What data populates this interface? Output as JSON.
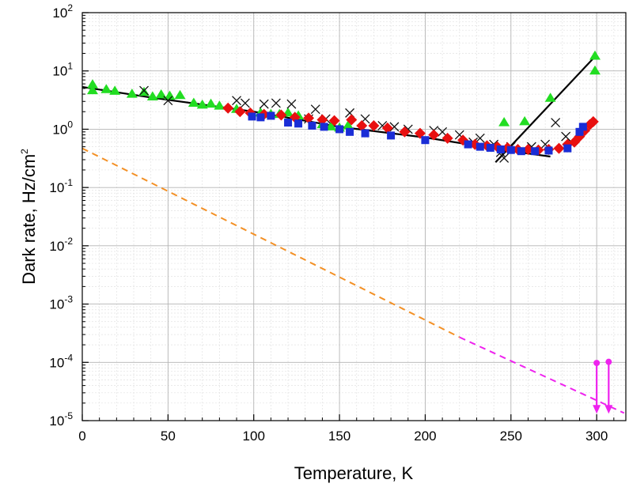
{
  "chart_data": {
    "type": "scatter",
    "title": "",
    "xlabel": "Temperature, K",
    "ylabel_main": "Dark rate,  Hz/cm",
    "ylabel_sup": "2",
    "xlim": [
      0,
      317
    ],
    "ylim": [
      1e-05,
      100
    ],
    "y_scale": "log",
    "grid": true,
    "legend": "none",
    "x_ticks": [
      {
        "value": 0,
        "label": "0"
      },
      {
        "value": 50,
        "label": "50"
      },
      {
        "value": 100,
        "label": "100"
      },
      {
        "value": 150,
        "label": "150"
      },
      {
        "value": 200,
        "label": "200"
      },
      {
        "value": 250,
        "label": "250"
      },
      {
        "value": 300,
        "label": "300"
      }
    ],
    "y_ticks": [
      {
        "value": 1e-05,
        "base": "10",
        "exp": "-5"
      },
      {
        "value": 0.0001,
        "base": "10",
        "exp": "-4"
      },
      {
        "value": 0.001,
        "base": "10",
        "exp": "-3"
      },
      {
        "value": 0.01,
        "base": "10",
        "exp": "-2"
      },
      {
        "value": 0.1,
        "base": "10",
        "exp": "-1"
      },
      {
        "value": 1,
        "base": "10",
        "exp": "0"
      },
      {
        "value": 10,
        "base": "10",
        "exp": "1"
      },
      {
        "value": 100,
        "base": "10",
        "exp": "2"
      }
    ],
    "series": [
      {
        "marker": "triangle",
        "color": "#22dd22",
        "points": [
          [
            6,
            5.8
          ],
          [
            6,
            4.6
          ],
          [
            14,
            4.8
          ],
          [
            19,
            4.5
          ],
          [
            29,
            4.0
          ],
          [
            36,
            4.3
          ],
          [
            41,
            3.6
          ],
          [
            46,
            3.9
          ],
          [
            51,
            3.7
          ],
          [
            57,
            3.8
          ],
          [
            65,
            2.8
          ],
          [
            70,
            2.6
          ],
          [
            75,
            2.7
          ],
          [
            80,
            2.5
          ],
          [
            90,
            2.2
          ],
          [
            104,
            1.9
          ],
          [
            110,
            1.8
          ],
          [
            115,
            1.8
          ],
          [
            120,
            1.9
          ],
          [
            126,
            1.7
          ],
          [
            140,
            1.2
          ],
          [
            145,
            1.1
          ],
          [
            150,
            1.05
          ],
          [
            155,
            1.15
          ],
          [
            246,
            1.3
          ],
          [
            258,
            1.35
          ],
          [
            273,
            3.4
          ],
          [
            299,
            18
          ],
          [
            299,
            10
          ]
        ]
      },
      {
        "marker": "x",
        "color": "#111111",
        "points": [
          [
            36,
            4.6
          ],
          [
            50,
            3.1
          ],
          [
            90,
            3.1
          ],
          [
            95,
            2.8
          ],
          [
            106,
            2.7
          ],
          [
            113,
            2.8
          ],
          [
            122,
            2.7
          ],
          [
            132,
            1.5
          ],
          [
            136,
            2.2
          ],
          [
            142,
            1.5
          ],
          [
            156,
            1.9
          ],
          [
            165,
            1.5
          ],
          [
            175,
            1.15
          ],
          [
            182,
            1.1
          ],
          [
            190,
            1.0
          ],
          [
            205,
            0.95
          ],
          [
            210,
            0.9
          ],
          [
            220,
            0.8
          ],
          [
            228,
            0.6
          ],
          [
            232,
            0.7
          ],
          [
            240,
            0.55
          ],
          [
            244,
            0.4
          ],
          [
            246,
            0.32
          ],
          [
            250,
            0.5
          ],
          [
            262,
            0.5
          ],
          [
            270,
            0.55
          ],
          [
            276,
            1.3
          ],
          [
            282,
            0.75
          ]
        ]
      },
      {
        "marker": "diamond",
        "color": "#e81010",
        "points": [
          [
            85,
            2.3
          ],
          [
            92,
            2.0
          ],
          [
            98,
            1.9
          ],
          [
            106,
            1.8
          ],
          [
            116,
            1.75
          ],
          [
            124,
            1.6
          ],
          [
            132,
            1.55
          ],
          [
            140,
            1.45
          ],
          [
            147,
            1.4
          ],
          [
            157,
            1.45
          ],
          [
            163,
            1.15
          ],
          [
            170,
            1.15
          ],
          [
            178,
            1.05
          ],
          [
            188,
            0.9
          ],
          [
            197,
            0.85
          ],
          [
            205,
            0.8
          ],
          [
            213,
            0.7
          ],
          [
            222,
            0.65
          ],
          [
            229,
            0.55
          ],
          [
            236,
            0.52
          ],
          [
            242,
            0.5
          ],
          [
            248,
            0.48
          ],
          [
            254,
            0.45
          ],
          [
            260,
            0.45
          ],
          [
            266,
            0.44
          ],
          [
            272,
            0.45
          ],
          [
            278,
            0.47
          ],
          [
            283,
            0.55
          ],
          [
            287,
            0.6
          ],
          [
            290,
            0.75
          ],
          [
            293,
            0.95
          ],
          [
            296,
            1.2
          ],
          [
            298,
            1.35
          ]
        ]
      },
      {
        "marker": "square",
        "color": "#1a2dd6",
        "points": [
          [
            99,
            1.65
          ],
          [
            104,
            1.6
          ],
          [
            110,
            1.7
          ],
          [
            120,
            1.3
          ],
          [
            126,
            1.25
          ],
          [
            134,
            1.15
          ],
          [
            141,
            1.1
          ],
          [
            150,
            1.0
          ],
          [
            156,
            0.9
          ],
          [
            165,
            0.85
          ],
          [
            180,
            0.78
          ],
          [
            200,
            0.65
          ],
          [
            225,
            0.55
          ],
          [
            232,
            0.5
          ],
          [
            238,
            0.48
          ],
          [
            244,
            0.45
          ],
          [
            250,
            0.44
          ],
          [
            256,
            0.42
          ],
          [
            264,
            0.42
          ],
          [
            272,
            0.43
          ],
          [
            283,
            0.47
          ],
          [
            290,
            0.9
          ],
          [
            292,
            1.1
          ]
        ]
      }
    ],
    "lines": [
      {
        "style": "solid",
        "color": "#000000",
        "points": [
          [
            0,
            5.3
          ],
          [
            40,
            3.5
          ],
          [
            100,
            2.0
          ],
          [
            150,
            1.1
          ],
          [
            200,
            0.72
          ],
          [
            250,
            0.42
          ],
          [
            273,
            0.34
          ]
        ]
      },
      {
        "style": "solid",
        "color": "#000000",
        "points": [
          [
            241,
            0.27
          ],
          [
            300,
            19
          ]
        ]
      },
      {
        "style": "dashed",
        "color": "#f39025",
        "points": [
          [
            0,
            0.47
          ],
          [
            220,
            0.00027
          ]
        ]
      },
      {
        "style": "dashed",
        "color": "#ee22ee",
        "points": [
          [
            220,
            0.00027
          ],
          [
            316,
            1.35e-05
          ]
        ]
      }
    ],
    "annotations": [
      {
        "type": "upper-limit-arrow",
        "color": "#ee22ee",
        "x": 300,
        "y_from": 9.75e-05,
        "y_to": 1.4e-05
      },
      {
        "type": "upper-limit-arrow",
        "color": "#ee22ee",
        "x": 307,
        "y_from": 0.000102,
        "y_to": 1.4e-05
      }
    ]
  }
}
